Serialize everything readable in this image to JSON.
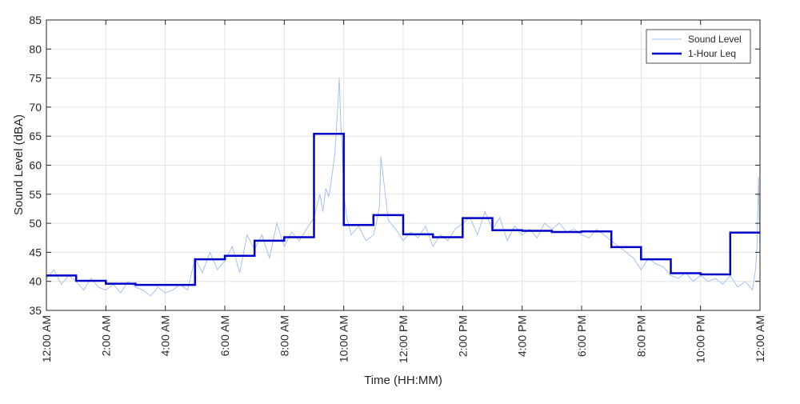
{
  "chart_data": {
    "type": "line",
    "xlabel": "Time (HH:MM)",
    "ylabel": "Sound Level (dBA)",
    "ylim": [
      35,
      85
    ],
    "xlim_hours": [
      0,
      24
    ],
    "yticks": [
      35,
      40,
      45,
      50,
      55,
      60,
      65,
      70,
      75,
      80,
      85
    ],
    "xticks": [
      {
        "hour": 0,
        "label": "12:00 AM"
      },
      {
        "hour": 2,
        "label": "2:00 AM"
      },
      {
        "hour": 4,
        "label": "4:00 AM"
      },
      {
        "hour": 6,
        "label": "6:00 AM"
      },
      {
        "hour": 8,
        "label": "8:00 AM"
      },
      {
        "hour": 10,
        "label": "10:00 AM"
      },
      {
        "hour": 12,
        "label": "12:00 PM"
      },
      {
        "hour": 14,
        "label": "2:00 PM"
      },
      {
        "hour": 16,
        "label": "4:00 PM"
      },
      {
        "hour": 18,
        "label": "6:00 PM"
      },
      {
        "hour": 20,
        "label": "8:00 PM"
      },
      {
        "hour": 22,
        "label": "10:00 PM"
      },
      {
        "hour": 24,
        "label": "12:00 AM"
      }
    ],
    "grid": true,
    "legend_position": "top-right",
    "series": [
      {
        "name": "Sound Level",
        "style": "thin-line",
        "color": "#a6c1f2",
        "x_hours": [
          0,
          0.25,
          0.5,
          0.75,
          1,
          1.25,
          1.5,
          1.75,
          2,
          2.25,
          2.5,
          2.75,
          3,
          3.25,
          3.5,
          3.75,
          4,
          4.25,
          4.5,
          4.75,
          5,
          5.25,
          5.5,
          5.75,
          6,
          6.25,
          6.5,
          6.75,
          7,
          7.25,
          7.5,
          7.75,
          8,
          8.25,
          8.5,
          8.75,
          9,
          9.1,
          9.2,
          9.3,
          9.4,
          9.5,
          9.6,
          9.7,
          9.75,
          9.8,
          9.85,
          9.9,
          9.95,
          10,
          10.1,
          10.25,
          10.5,
          10.75,
          11,
          11.1,
          11.2,
          11.25,
          11.5,
          11.75,
          12,
          12.25,
          12.5,
          12.75,
          13,
          13.25,
          13.5,
          13.75,
          14,
          14.25,
          14.5,
          14.75,
          15,
          15.25,
          15.5,
          15.75,
          16,
          16.25,
          16.5,
          16.75,
          17,
          17.25,
          17.5,
          17.75,
          18,
          18.25,
          18.5,
          18.75,
          19,
          19.25,
          19.5,
          19.75,
          20,
          20.25,
          20.5,
          20.75,
          21,
          21.25,
          21.5,
          21.75,
          22,
          22.25,
          22.5,
          22.75,
          23,
          23.25,
          23.5,
          23.75,
          23.85,
          23.9,
          23.95,
          24
        ],
        "values": [
          40.5,
          42,
          39.5,
          41,
          40,
          38.5,
          40.5,
          39,
          38.5,
          39.5,
          38,
          40,
          39,
          38.5,
          37.5,
          39,
          38,
          38.5,
          39.5,
          38.5,
          44,
          41.5,
          45,
          42,
          43.5,
          46,
          41.5,
          48,
          45.5,
          48,
          44,
          50,
          46,
          48.5,
          47,
          49,
          51,
          53,
          55,
          52,
          56,
          54.5,
          58,
          62,
          66,
          70,
          75,
          67,
          63,
          55,
          51,
          48,
          49.5,
          47,
          48,
          50,
          53,
          61.5,
          50.5,
          49,
          47,
          48.5,
          47.5,
          49.5,
          46,
          48,
          47,
          49,
          50,
          51,
          48,
          52,
          49,
          51,
          47,
          49.5,
          48,
          49,
          47.5,
          50,
          49,
          50,
          48.5,
          49,
          48,
          47.5,
          49,
          48,
          47,
          46,
          45,
          44,
          42,
          44,
          43,
          42.5,
          41,
          40.5,
          41.5,
          40,
          41,
          40,
          40.5,
          39.5,
          41,
          39,
          40,
          38.5,
          42,
          46,
          58,
          45
        ]
      },
      {
        "name": "1-Hour Leq",
        "style": "step",
        "color": "#0000cc",
        "x_hours": [
          0,
          1,
          2,
          3,
          4,
          5,
          6,
          7,
          8,
          9,
          10,
          11,
          12,
          13,
          14,
          15,
          16,
          17,
          18,
          19,
          20,
          21,
          22,
          23
        ],
        "values": [
          41,
          40.1,
          39.6,
          39.4,
          39.4,
          43.8,
          44.4,
          47,
          47.6,
          65.4,
          49.7,
          51.4,
          48.1,
          47.6,
          50.9,
          48.8,
          48.7,
          48.5,
          48.6,
          45.9,
          43.8,
          41.4,
          41.2,
          48.4
        ]
      }
    ]
  }
}
